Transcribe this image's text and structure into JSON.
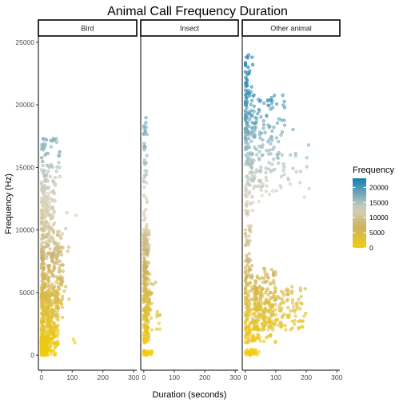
{
  "chart_data": {
    "type": "scatter",
    "title": "Animal Call Frequency Duration",
    "xlabel": "Duration (seconds)",
    "ylabel": "Frequency (Hz)",
    "facets": [
      "Bird",
      "Insect",
      "Other animal"
    ],
    "xlim": [
      -10,
      310
    ],
    "ylim": [
      -1200,
      25500
    ],
    "xticks": [
      0,
      100,
      200,
      300
    ],
    "yticks": [
      0,
      5000,
      10000,
      15000,
      20000,
      25000
    ],
    "xtick_labels": [
      "0",
      "100",
      "200",
      "300"
    ],
    "ytick_labels": [
      "0",
      "5000",
      "10000",
      "15000",
      "20000",
      "25000"
    ],
    "grid": false,
    "legend": {
      "title": "Frequency",
      "position": "right",
      "labels": [
        "20000",
        "15000",
        "10000",
        "5000",
        "0"
      ],
      "values": [
        20000,
        15000,
        10000,
        5000,
        0
      ],
      "range": [
        0,
        23000
      ]
    },
    "color_scale": {
      "low": "#f2cc0c",
      "mid": "#c9b16a",
      "mid2": "#d8d3bf",
      "high": "#0f7fb0"
    },
    "clusters": {
      "Bird": [
        {
          "n": 340,
          "x": [
            0,
            18
          ],
          "y": [
            0,
            1500
          ]
        },
        {
          "n": 320,
          "x": [
            0,
            55
          ],
          "y": [
            0,
            5000
          ]
        },
        {
          "n": 260,
          "x": [
            0,
            70
          ],
          "y": [
            4000,
            10000
          ]
        },
        {
          "n": 140,
          "x": [
            0,
            45
          ],
          "y": [
            10000,
            14000
          ]
        },
        {
          "n": 60,
          "x": [
            0,
            60
          ],
          "y": [
            14000,
            17500
          ]
        },
        {
          "n": 40,
          "x": [
            20,
            115
          ],
          "y": [
            500,
            12000
          ]
        }
      ],
      "Insect": [
        {
          "n": 30,
          "x": [
            0,
            28
          ],
          "y": [
            0,
            400
          ]
        },
        {
          "n": 230,
          "x": [
            0,
            18
          ],
          "y": [
            1000,
            10000
          ]
        },
        {
          "n": 50,
          "x": [
            8,
            55
          ],
          "y": [
            2000,
            6500
          ]
        },
        {
          "n": 45,
          "x": [
            0,
            12
          ],
          "y": [
            10000,
            19000
          ]
        }
      ],
      "Other animal": [
        {
          "n": 30,
          "x": [
            0,
            45
          ],
          "y": [
            0,
            500
          ]
        },
        {
          "n": 260,
          "x": [
            0,
            100
          ],
          "y": [
            1000,
            7000
          ]
        },
        {
          "n": 180,
          "x": [
            30,
            200
          ],
          "y": [
            2000,
            5500
          ]
        },
        {
          "n": 140,
          "x": [
            0,
            25
          ],
          "y": [
            6000,
            24000
          ]
        },
        {
          "n": 180,
          "x": [
            0,
            130
          ],
          "y": [
            13000,
            21000
          ]
        },
        {
          "n": 60,
          "x": [
            20,
            210
          ],
          "y": [
            12000,
            18500
          ]
        }
      ]
    }
  }
}
